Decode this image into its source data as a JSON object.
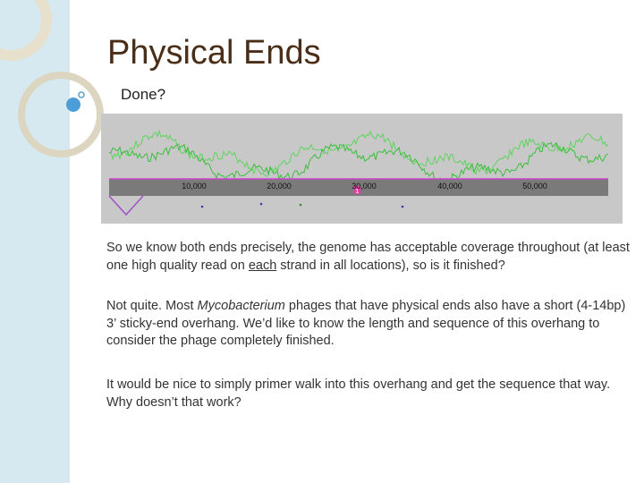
{
  "slide": {
    "title": "Physical Ends",
    "subtitle": "Done?",
    "figure": {
      "axis_labels": [
        "10,000",
        "20,000",
        "30,000",
        "40,000",
        "50,000"
      ],
      "marker": "1"
    },
    "paragraphs": [
      {
        "parts": [
          "So we know both ends precisely, the genome has acceptable coverage throughout (at least one high quality read on ",
          "each",
          " strand in all locations), so is it finished?"
        ]
      },
      {
        "parts": [
          "Not quite.  Most ",
          "Mycobacterium",
          " phages that have physical ends also have a short (4-14bp) 3’ sticky-end overhang.  We’d like to know the length and sequence of this overhang to consider the phage completely finished."
        ]
      },
      {
        "parts": [
          "It would be nice to simply primer walk into this overhang and get the sequence that way. Why doesn’t that work?"
        ]
      }
    ]
  }
}
